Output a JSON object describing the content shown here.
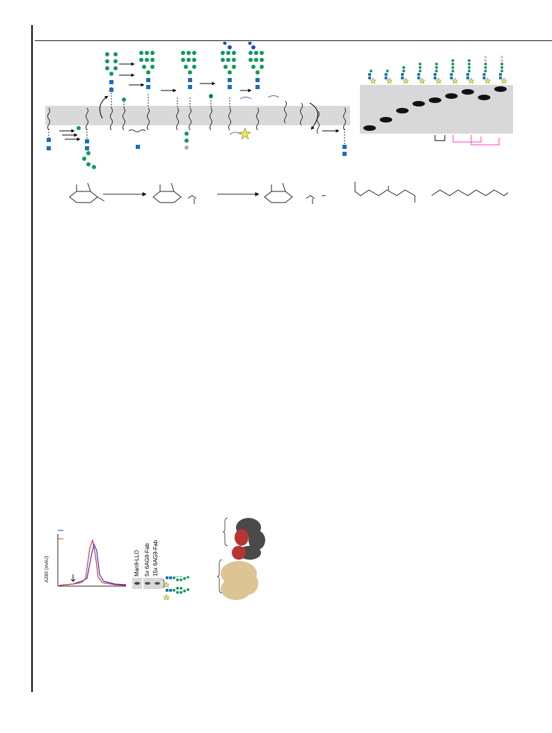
{
  "gel_lanes": 9,
  "chromatogram": {
    "ylabel": "A280 (mAU)",
    "series_colors": [
      "#2b2bd6",
      "#e03030"
    ]
  },
  "blot": {
    "lanes": [
      "Man9-LLO",
      "5x 6AG9-Fab",
      "15x 6AG9-Fab"
    ]
  },
  "colors": {
    "mannose": "#0f9a5a",
    "glcnac": "#1b6fb8",
    "glucose": "#1e4fb0",
    "galactose": "#e3b6e9",
    "star": "#f5ea3c",
    "membrane": "#d9d9d9",
    "arrow_magenta": "#ff38c8",
    "map_red": "#b53535",
    "map_dark": "#4a4a4a",
    "map_tan": "#dcc495"
  }
}
